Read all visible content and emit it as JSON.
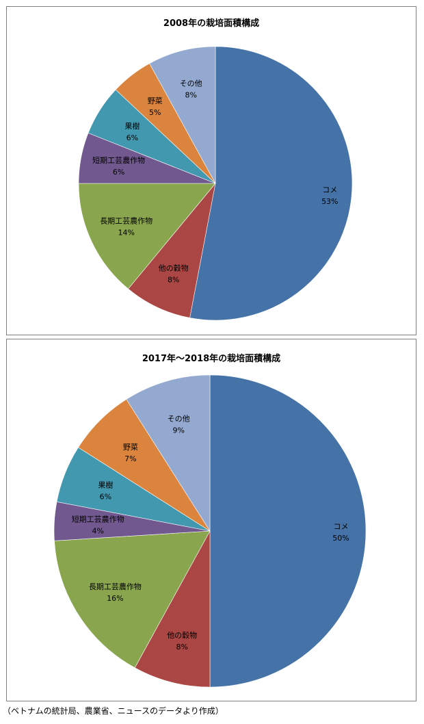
{
  "chart_data": [
    {
      "type": "pie",
      "title": "2008年の栽培面積構成",
      "start_angle_deg": 0,
      "direction": "clockwise",
      "categories": [
        "コメ",
        "他の穀物",
        "長期工芸農作物",
        "短期工芸農作物",
        "果樹",
        "野菜",
        "その他"
      ],
      "values": [
        53,
        8,
        14,
        6,
        6,
        5,
        8
      ],
      "labels": [
        "53%",
        "8%",
        "14%",
        "6%",
        "6%",
        "5%",
        "8%"
      ],
      "colors": [
        "#4572A7",
        "#AA4643",
        "#89A54E",
        "#71588F",
        "#4198AF",
        "#DB843D",
        "#93A9CF"
      ]
    },
    {
      "type": "pie",
      "title": "2017年～2018年の栽培面積構成",
      "start_angle_deg": 0,
      "direction": "clockwise",
      "categories": [
        "コメ",
        "他の穀物",
        "長期工芸農作物",
        "短期工芸農作物",
        "果樹",
        "野菜",
        "その他"
      ],
      "values": [
        50,
        8,
        16,
        4,
        6,
        7,
        9
      ],
      "labels": [
        "50%",
        "8%",
        "16%",
        "4%",
        "6%",
        "7%",
        "9%"
      ],
      "colors": [
        "#4572A7",
        "#AA4643",
        "#89A54E",
        "#71588F",
        "#4198AF",
        "#DB843D",
        "#93A9CF"
      ]
    }
  ],
  "footnote": "（ベトナムの統計局、農業省、ニュースのデータより作成）"
}
